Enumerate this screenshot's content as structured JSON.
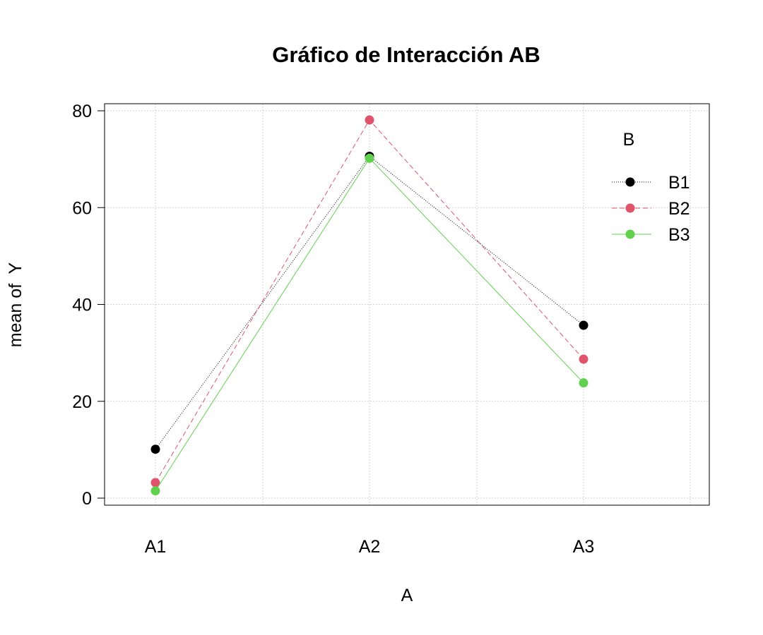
{
  "chart_data": {
    "type": "line",
    "title": "Gráfico de Interacción AB",
    "xlabel": "A",
    "ylabel": "mean of  Y",
    "categories": [
      "A1",
      "A2",
      "A3"
    ],
    "ylim": [
      0,
      80
    ],
    "yticks": [
      0,
      20,
      40,
      60,
      80
    ],
    "grid": true,
    "legend": {
      "title": "B",
      "position": "top-right"
    },
    "series": [
      {
        "name": "B1",
        "values": [
          10.1,
          70.6,
          35.7
        ],
        "color": "#000000",
        "dash": "dotted"
      },
      {
        "name": "B2",
        "values": [
          3.2,
          78.1,
          28.7
        ],
        "color": "#DF536B",
        "dash": "dashed"
      },
      {
        "name": "B3",
        "values": [
          1.5,
          70.2,
          23.8
        ],
        "color": "#61D04F",
        "dash": "solid"
      }
    ]
  }
}
